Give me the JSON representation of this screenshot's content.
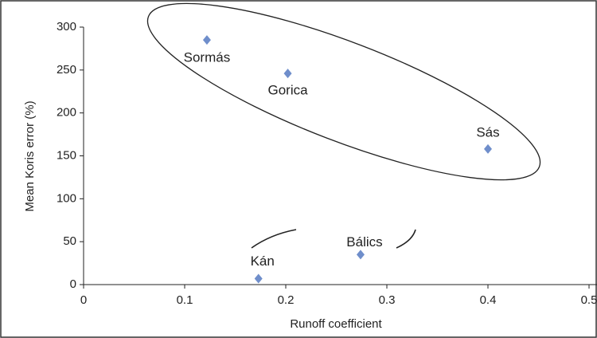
{
  "chart_data": {
    "type": "scatter",
    "xlabel": "Runoff coefficient",
    "ylabel": "Mean Koris error (%)",
    "x": [
      0.122,
      0.202,
      0.4,
      0.274,
      0.173
    ],
    "values": [
      285,
      246,
      158,
      35,
      7
    ],
    "labels": [
      "Sormás",
      "Gorica",
      "Sás",
      "Bálics",
      "Kán"
    ],
    "color": "#6f8ecb",
    "xlim": [
      0,
      0.5
    ],
    "xticks": [
      0,
      0.1,
      0.2,
      0.3,
      0.4,
      0.5
    ],
    "ylim": [
      0,
      300
    ],
    "yticks": [
      0,
      50,
      100,
      150,
      200,
      250,
      300
    ]
  }
}
